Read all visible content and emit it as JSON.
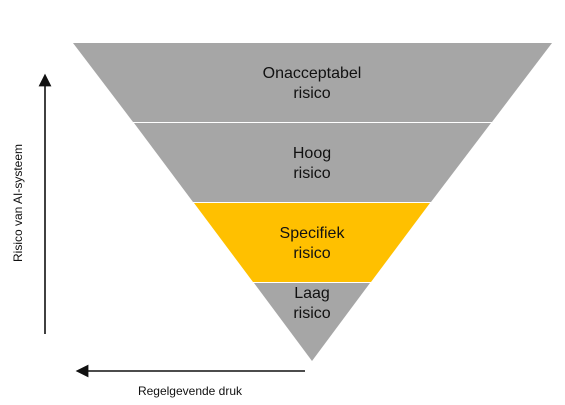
{
  "pyramid": {
    "tiers": [
      {
        "line1": "Onacceptabel",
        "line2": "risico",
        "color": "#a6a6a6"
      },
      {
        "line1": "Hoog",
        "line2": "risico",
        "color": "#a6a6a6"
      },
      {
        "line1": "Specifiek",
        "line2": "risico",
        "color": "#ffc000"
      },
      {
        "line1": "Laag",
        "line2": "risico",
        "color": "#a6a6a6"
      }
    ]
  },
  "axes": {
    "vertical_label": "Risico van AI-systeem",
    "horizontal_label": "Regelgevende druk"
  }
}
